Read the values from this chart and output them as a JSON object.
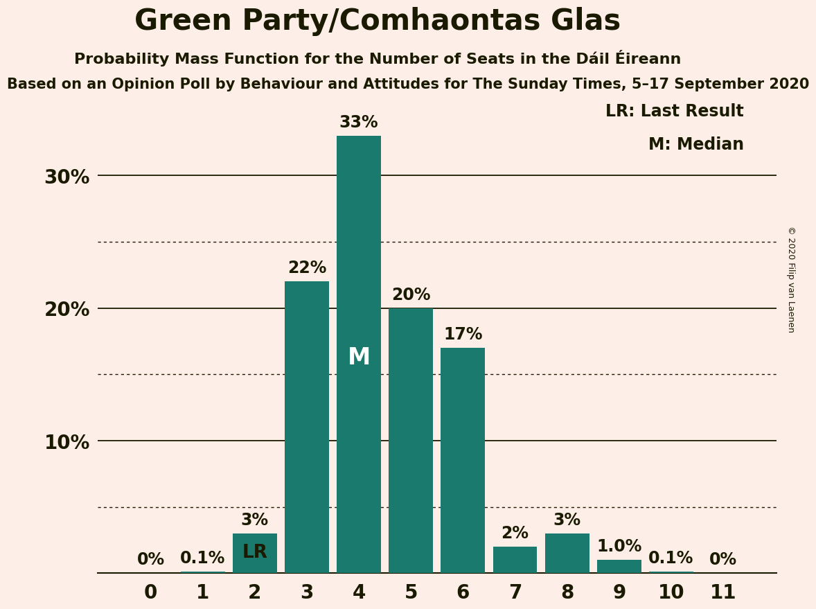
{
  "title": "Green Party/Comhaontas Glas",
  "subtitle": "Probability Mass Function for the Number of Seats in the Dáil Éireann",
  "sub2": "Based on an Opinion Poll by Behaviour and Attitudes for The Sunday Times, 5–17 September 2020",
  "copyright": "© 2020 Filip van Laenen",
  "categories": [
    0,
    1,
    2,
    3,
    4,
    5,
    6,
    7,
    8,
    9,
    10,
    11
  ],
  "values": [
    0.0,
    0.1,
    3.0,
    22.0,
    33.0,
    20.0,
    17.0,
    2.0,
    3.0,
    1.0,
    0.1,
    0.0
  ],
  "labels": [
    "0%",
    "0.1%",
    "3%",
    "22%",
    "33%",
    "20%",
    "17%",
    "2%",
    "3%",
    "1.0%",
    "0.1%",
    "0%"
  ],
  "bar_color": "#1a7a6e",
  "background_color": "#fdeee8",
  "text_color": "#1a1a00",
  "lr_bar": 2,
  "median_bar": 4,
  "legend_lr": "LR: Last Result",
  "legend_m": "M: Median",
  "ylim": [
    0,
    36
  ],
  "ytick_positions": [
    10,
    20,
    30
  ],
  "ytick_labels": [
    "10%",
    "20%",
    "30%"
  ],
  "dotted_lines": [
    5,
    15,
    25
  ],
  "solid_lines": [
    10,
    20,
    30
  ],
  "title_fontsize": 30,
  "subtitle_fontsize": 16,
  "sub2_fontsize": 15,
  "label_fontsize": 17,
  "ytick_fontsize": 20,
  "xtick_fontsize": 20,
  "legend_fontsize": 17
}
